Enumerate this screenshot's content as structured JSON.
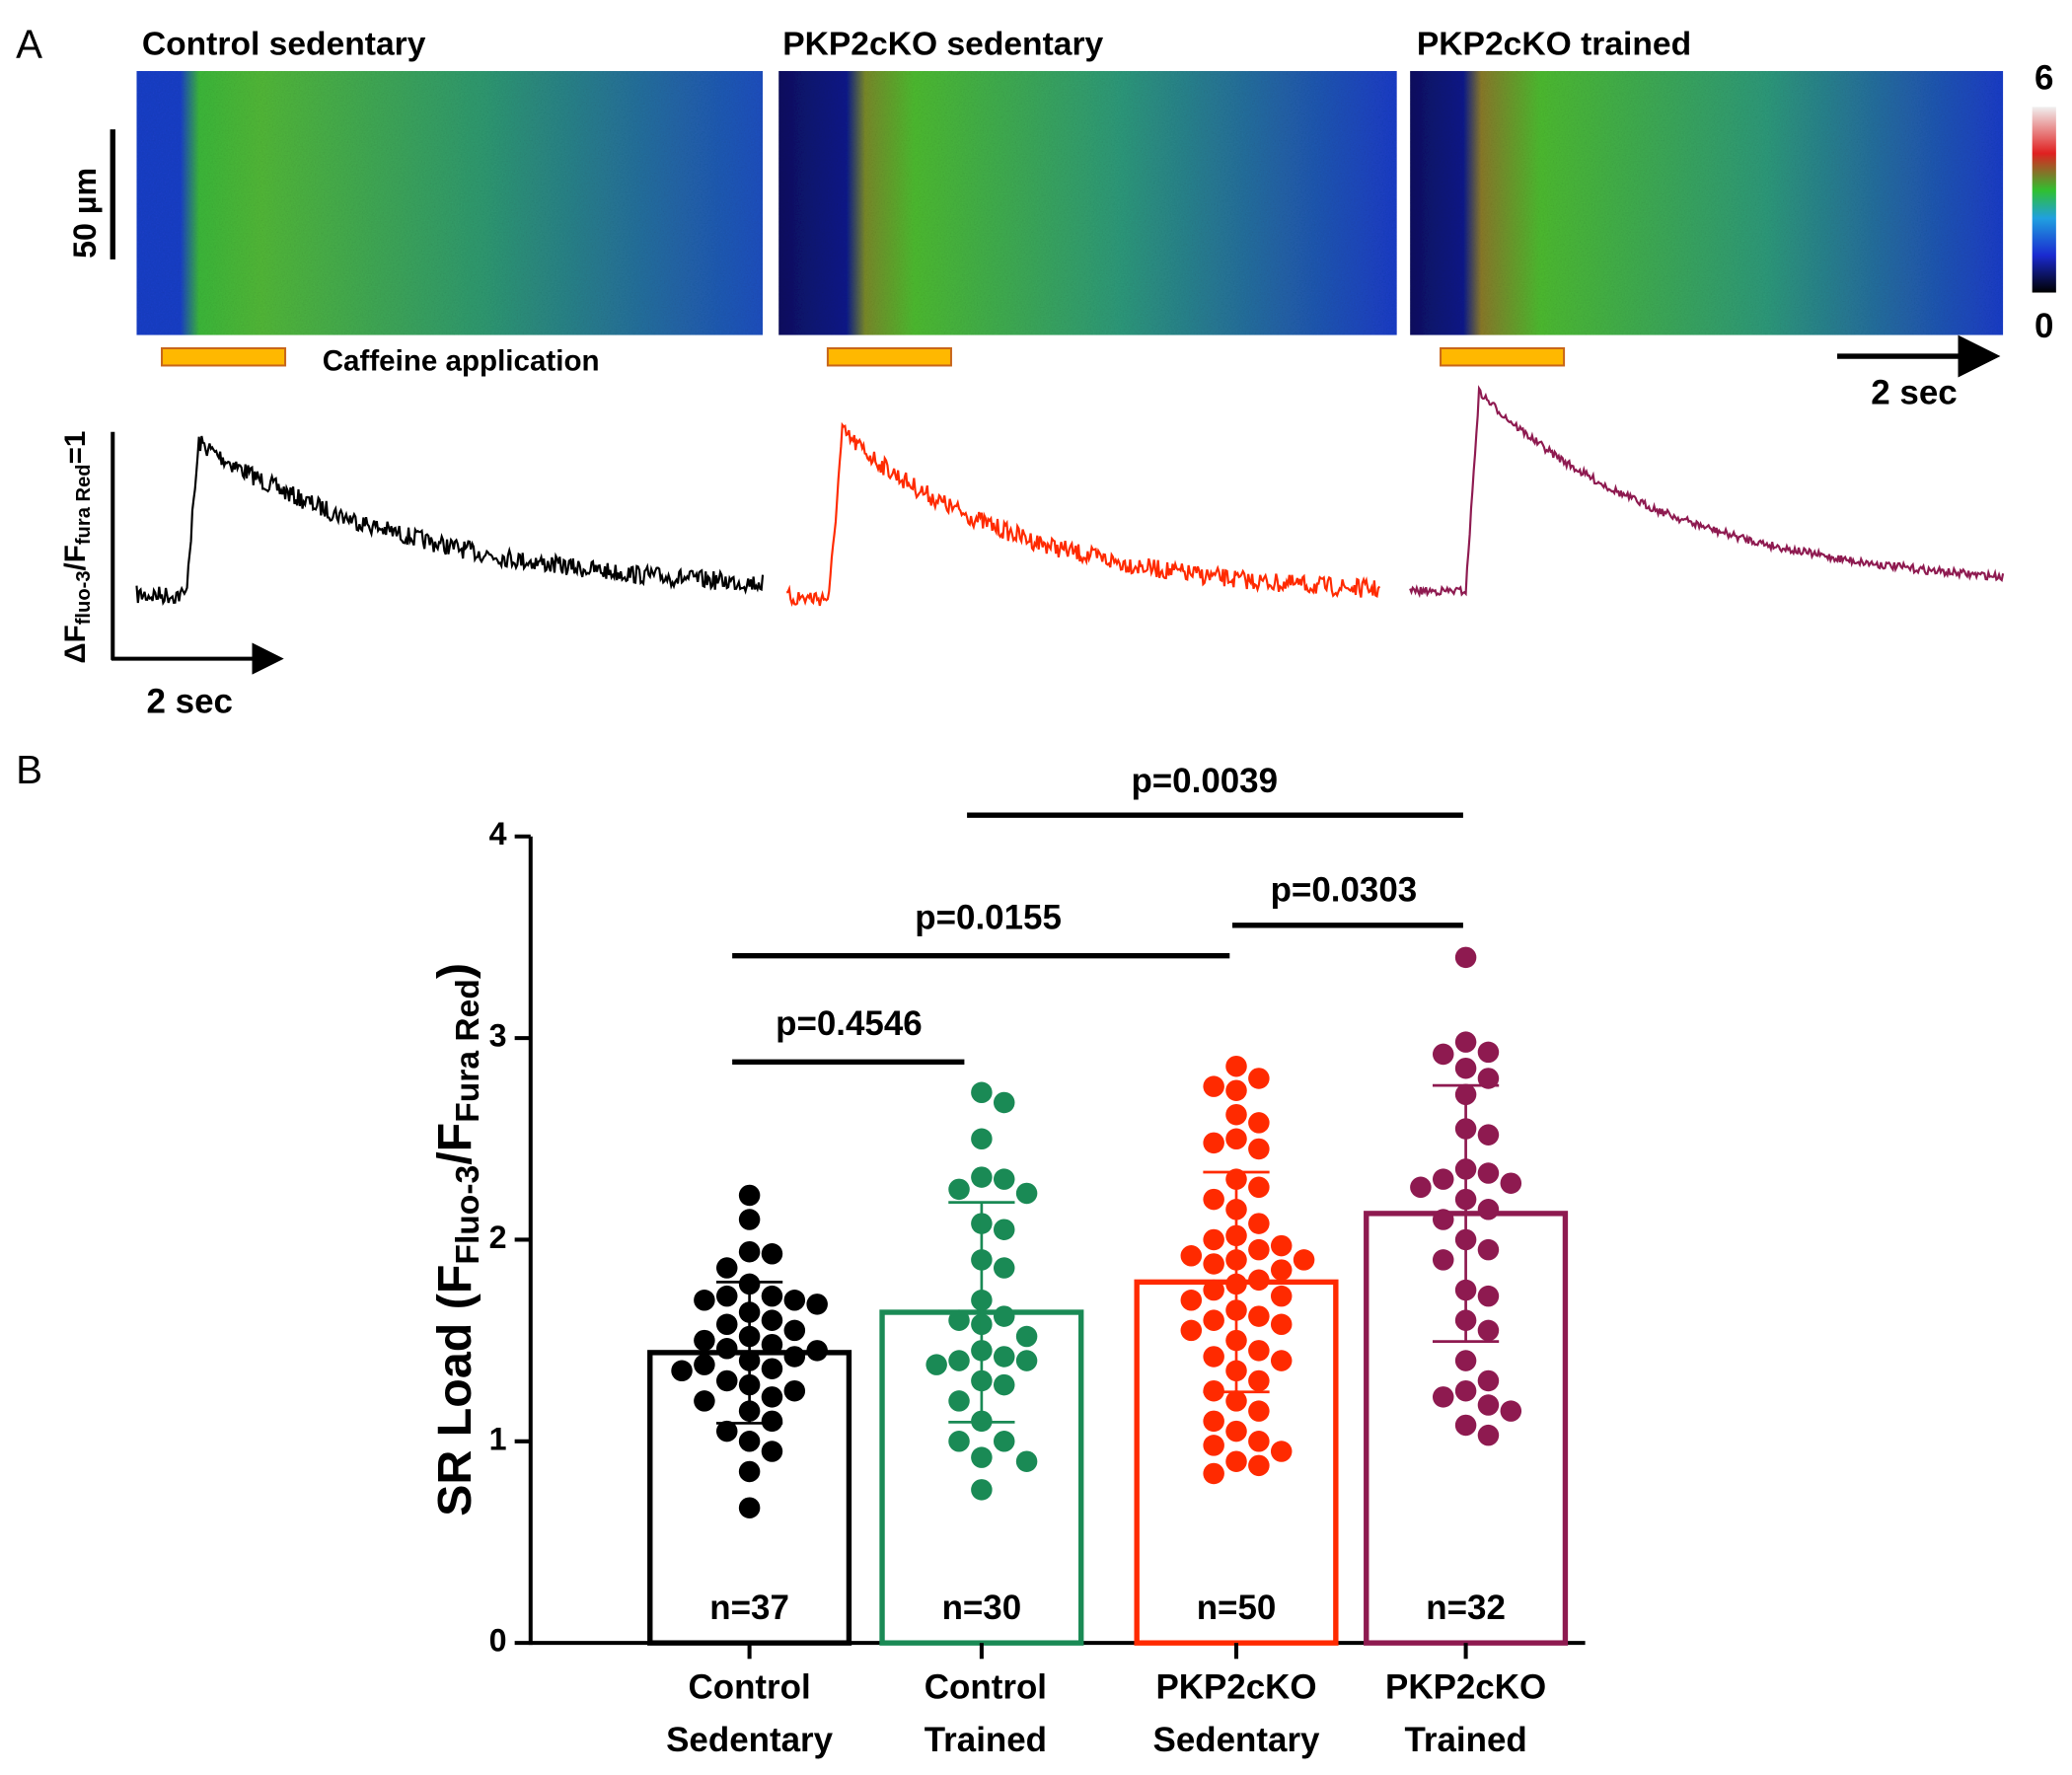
{
  "panel_a": {
    "label": "A",
    "titles": [
      "Control sedentary",
      "PKP2cKO sedentary",
      "PKP2cKO trained"
    ],
    "scale_bar": "50 µm",
    "caffeine": "Caffeine application",
    "time_bar_top": "2 sec",
    "time_bar_bottom": "2 sec",
    "colorbar_max": "6",
    "colorbar_min": "0",
    "trace_ylabel": [
      "ΔF",
      "fluo-3",
      "/F",
      "fura Red",
      "=1"
    ]
  },
  "panel_b_label": "B",
  "chart_data": {
    "type": "bar",
    "categories": [
      [
        "Control",
        "Sedentary"
      ],
      [
        "Control",
        "Trained"
      ],
      [
        "PKP2cKO",
        "Sedentary"
      ],
      [
        "PKP2cKO",
        "Trained"
      ]
    ],
    "values": [
      1.44,
      1.64,
      1.79,
      2.13
    ],
    "errors": [
      0.35,
      0.545,
      0.545,
      0.635
    ],
    "colors": [
      "#000000",
      "#1a8a55",
      "#ff2a00",
      "#8e1a50"
    ],
    "n_labels": [
      "n=37",
      "n=30",
      "n=50",
      "n=32"
    ],
    "points": [
      [
        2.22,
        2.1,
        1.94,
        1.93,
        1.86,
        1.78,
        1.72,
        1.72,
        1.7,
        1.7,
        1.68,
        1.64,
        1.6,
        1.58,
        1.55,
        1.52,
        1.5,
        1.48,
        1.46,
        1.45,
        1.42,
        1.4,
        1.38,
        1.36,
        1.35,
        1.3,
        1.28,
        1.25,
        1.22,
        1.2,
        1.15,
        1.1,
        1.05,
        1.0,
        0.95,
        0.85,
        0.67
      ],
      [
        2.73,
        2.68,
        2.5,
        2.31,
        2.3,
        2.25,
        2.23,
        2.08,
        2.05,
        1.9,
        1.86,
        1.7,
        1.62,
        1.6,
        1.58,
        1.52,
        1.45,
        1.42,
        1.4,
        1.4,
        1.38,
        1.3,
        1.28,
        1.2,
        1.1,
        1.0,
        1.0,
        0.92,
        0.9,
        0.76
      ],
      [
        2.86,
        2.8,
        2.76,
        2.74,
        2.62,
        2.58,
        2.5,
        2.48,
        2.45,
        2.3,
        2.26,
        2.2,
        2.15,
        2.08,
        2.02,
        2.0,
        1.97,
        1.95,
        1.92,
        1.9,
        1.9,
        1.88,
        1.85,
        1.8,
        1.78,
        1.75,
        1.72,
        1.7,
        1.65,
        1.62,
        1.6,
        1.58,
        1.55,
        1.5,
        1.45,
        1.42,
        1.4,
        1.35,
        1.3,
        1.25,
        1.2,
        1.15,
        1.1,
        1.05,
        1.0,
        0.98,
        0.95,
        0.9,
        0.88,
        0.84
      ],
      [
        3.4,
        2.98,
        2.93,
        2.92,
        2.85,
        2.8,
        2.72,
        2.55,
        2.52,
        2.35,
        2.33,
        2.3,
        2.28,
        2.26,
        2.2,
        2.15,
        2.1,
        2.0,
        1.95,
        1.9,
        1.75,
        1.72,
        1.6,
        1.55,
        1.4,
        1.3,
        1.25,
        1.22,
        1.18,
        1.15,
        1.08,
        1.03
      ]
    ],
    "ylabel": [
      "SR Load (F",
      "Fluo-3",
      "/F",
      "Fura Red",
      ")"
    ],
    "annotations": [
      "p=0.4546",
      "p=0.0155",
      "p=0.0303",
      "p=0.0039"
    ],
    "ylim": [
      0,
      4
    ],
    "yticks": [
      0,
      1,
      2,
      3,
      4
    ]
  }
}
